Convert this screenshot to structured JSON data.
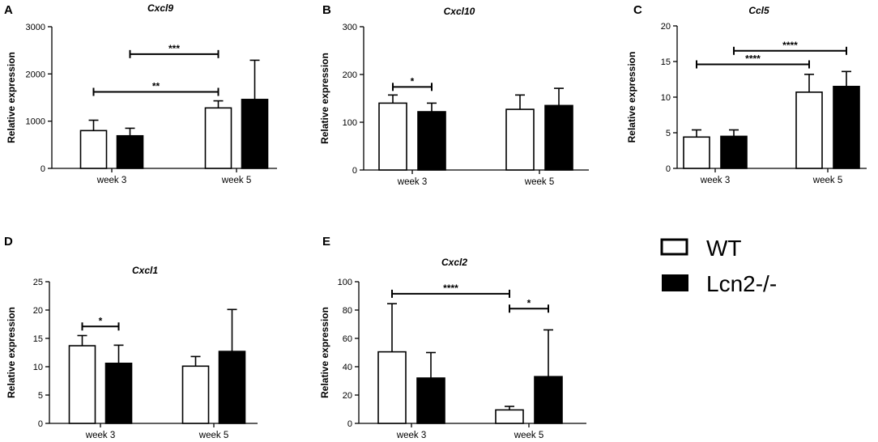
{
  "figure": {
    "legend": [
      {
        "label": "WT",
        "color": "#ffffff"
      },
      {
        "label": "Lcn2-/-",
        "color": "#000000"
      }
    ]
  },
  "chart_data": [
    {
      "panel": "A",
      "type": "bar",
      "title": "Cxcl9",
      "ylabel": "Relative expression",
      "ylim": [
        0,
        3000
      ],
      "yticks": [
        0,
        1000,
        2000,
        3000
      ],
      "categories": [
        "week 3",
        "week 5"
      ],
      "series": [
        {
          "name": "WT",
          "color": "#ffffff",
          "values": [
            800,
            1280
          ],
          "errors": [
            220,
            150
          ]
        },
        {
          "name": "Lcn2-/-",
          "color": "#000000",
          "values": [
            690,
            1460
          ],
          "errors": [
            160,
            830
          ]
        }
      ],
      "significance": [
        {
          "label": "**",
          "from": [
            0,
            0
          ],
          "to": [
            1,
            0
          ],
          "y": 1620
        },
        {
          "label": "***",
          "from": [
            0,
            1
          ],
          "to": [
            1,
            0
          ],
          "y": 2420
        }
      ]
    },
    {
      "panel": "B",
      "type": "bar",
      "title": "Cxcl10",
      "ylabel": "Relative expression",
      "ylim": [
        0,
        300
      ],
      "yticks": [
        0,
        100,
        200,
        300
      ],
      "categories": [
        "week 3",
        "week 5"
      ],
      "series": [
        {
          "name": "WT",
          "color": "#ffffff",
          "values": [
            140,
            127
          ],
          "errors": [
            17,
            30
          ]
        },
        {
          "name": "Lcn2-/-",
          "color": "#000000",
          "values": [
            122,
            135
          ],
          "errors": [
            18,
            36
          ]
        }
      ],
      "significance": [
        {
          "label": "*",
          "from": [
            0,
            0
          ],
          "to": [
            0,
            1
          ],
          "y": 174
        }
      ]
    },
    {
      "panel": "C",
      "type": "bar",
      "title": "Ccl5",
      "ylabel": "Relative expression",
      "ylim": [
        0,
        20
      ],
      "yticks": [
        0,
        5,
        10,
        15,
        20
      ],
      "categories": [
        "week 3",
        "week 5"
      ],
      "series": [
        {
          "name": "WT",
          "color": "#ffffff",
          "values": [
            4.4,
            10.7
          ],
          "errors": [
            1.0,
            2.5
          ]
        },
        {
          "name": "Lcn2-/-",
          "color": "#000000",
          "values": [
            4.5,
            11.5
          ],
          "errors": [
            0.9,
            2.1
          ]
        }
      ],
      "significance": [
        {
          "label": "****",
          "from": [
            0,
            0
          ],
          "to": [
            1,
            0
          ],
          "y": 14.6
        },
        {
          "label": "****",
          "from": [
            0,
            1
          ],
          "to": [
            1,
            1
          ],
          "y": 16.5
        }
      ]
    },
    {
      "panel": "D",
      "type": "bar",
      "title": "Cxcl1",
      "ylabel": "Relative expression",
      "ylim": [
        0,
        25
      ],
      "yticks": [
        0,
        5,
        10,
        15,
        20,
        25
      ],
      "categories": [
        "week 3",
        "week 5"
      ],
      "series": [
        {
          "name": "WT",
          "color": "#ffffff",
          "values": [
            13.7,
            10.1
          ],
          "errors": [
            1.8,
            1.7
          ]
        },
        {
          "name": "Lcn2-/-",
          "color": "#000000",
          "values": [
            10.6,
            12.7
          ],
          "errors": [
            3.2,
            7.4
          ]
        }
      ],
      "significance": [
        {
          "label": "*",
          "from": [
            0,
            0
          ],
          "to": [
            0,
            1
          ],
          "y": 17.1
        }
      ]
    },
    {
      "panel": "E",
      "type": "bar",
      "title": "Cxcl2",
      "ylabel": "Relative expression",
      "ylim": [
        0,
        100
      ],
      "yticks": [
        0,
        20,
        40,
        60,
        80,
        100
      ],
      "categories": [
        "week 3",
        "week 5"
      ],
      "series": [
        {
          "name": "WT",
          "color": "#ffffff",
          "values": [
            50.5,
            9.5
          ],
          "errors": [
            34,
            2.5
          ]
        },
        {
          "name": "Lcn2-/-",
          "color": "#000000",
          "values": [
            32,
            33
          ],
          "errors": [
            18,
            33
          ]
        }
      ],
      "significance": [
        {
          "label": "****",
          "from": [
            0,
            0
          ],
          "to": [
            1,
            0
          ],
          "y": 91.5
        },
        {
          "label": "*",
          "from": [
            1,
            0
          ],
          "to": [
            1,
            1
          ],
          "y": 81
        }
      ]
    }
  ]
}
